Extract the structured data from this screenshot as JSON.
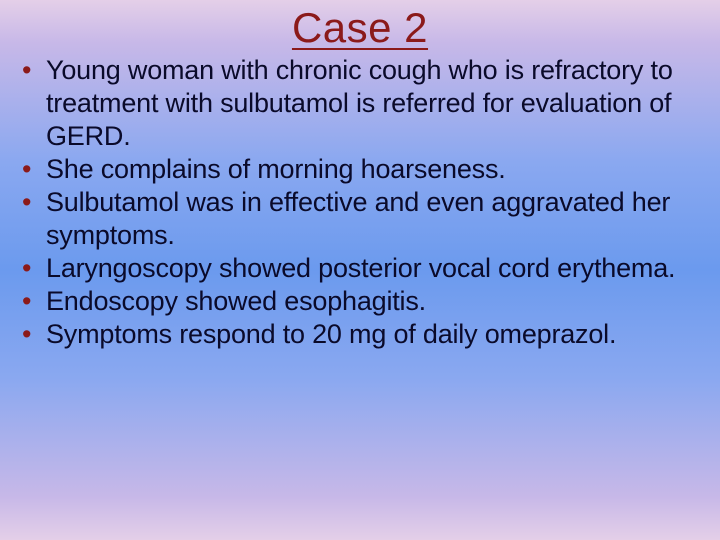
{
  "slide": {
    "title": "Case 2",
    "title_color": "#8b1a1a",
    "title_fontsize": 42,
    "body_fontsize": 27,
    "body_color": "#0a0a2a",
    "bullet_color": "#8b1a1a",
    "background_gradient": [
      "#e4cfe8",
      "#c7b8e8",
      "#8aa8f0",
      "#6b9aee",
      "#8aa8f0",
      "#c7b8e8",
      "#e4cfe8"
    ],
    "bullets": [
      "Young woman with chronic cough who is refractory to treatment with sulbutamol is referred for evaluation of GERD.",
      "She complains of morning hoarseness.",
      "Sulbutamol was in effective and even aggravated her symptoms.",
      "Laryngoscopy showed posterior vocal cord erythema.",
      "Endoscopy showed esophagitis.",
      "Symptoms respond to 20 mg of daily omeprazol."
    ]
  }
}
